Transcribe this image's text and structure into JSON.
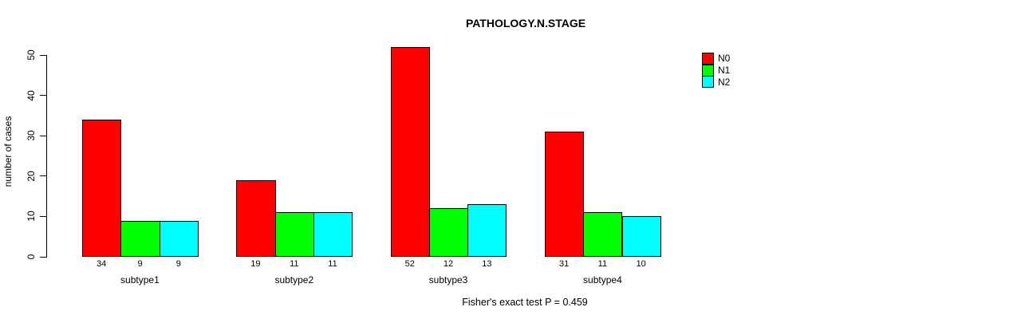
{
  "title": "PATHOLOGY.N.STAGE",
  "ylabel": "number of cases",
  "footer": "Fisher's exact test P = 0.459",
  "chart_data": {
    "type": "bar",
    "title": "PATHOLOGY.N.STAGE",
    "xlabel": "",
    "ylabel": "number of cases",
    "categories": [
      "subtype1",
      "subtype2",
      "subtype3",
      "subtype4"
    ],
    "series": [
      {
        "name": "N0",
        "color": "#FF0000",
        "values": [
          34,
          19,
          52,
          31
        ]
      },
      {
        "name": "N1",
        "color": "#00FF00",
        "values": [
          9,
          11,
          12,
          11
        ]
      },
      {
        "name": "N2",
        "color": "#00FFFF",
        "values": [
          9,
          11,
          13,
          10
        ]
      }
    ],
    "bar_value_labels": [
      [
        "34",
        "9",
        "9"
      ],
      [
        "19",
        "11",
        "11"
      ],
      [
        "52",
        "12",
        "13"
      ],
      [
        "31",
        "11",
        "10"
      ]
    ],
    "yticks": [
      0,
      10,
      20,
      30,
      40,
      50
    ],
    "ylim": [
      0,
      52
    ],
    "grid": false,
    "legend_position": "right",
    "legend_entries": [
      "N0",
      "N1",
      "N2"
    ],
    "annotation": "Fisher's exact test P = 0.459"
  }
}
